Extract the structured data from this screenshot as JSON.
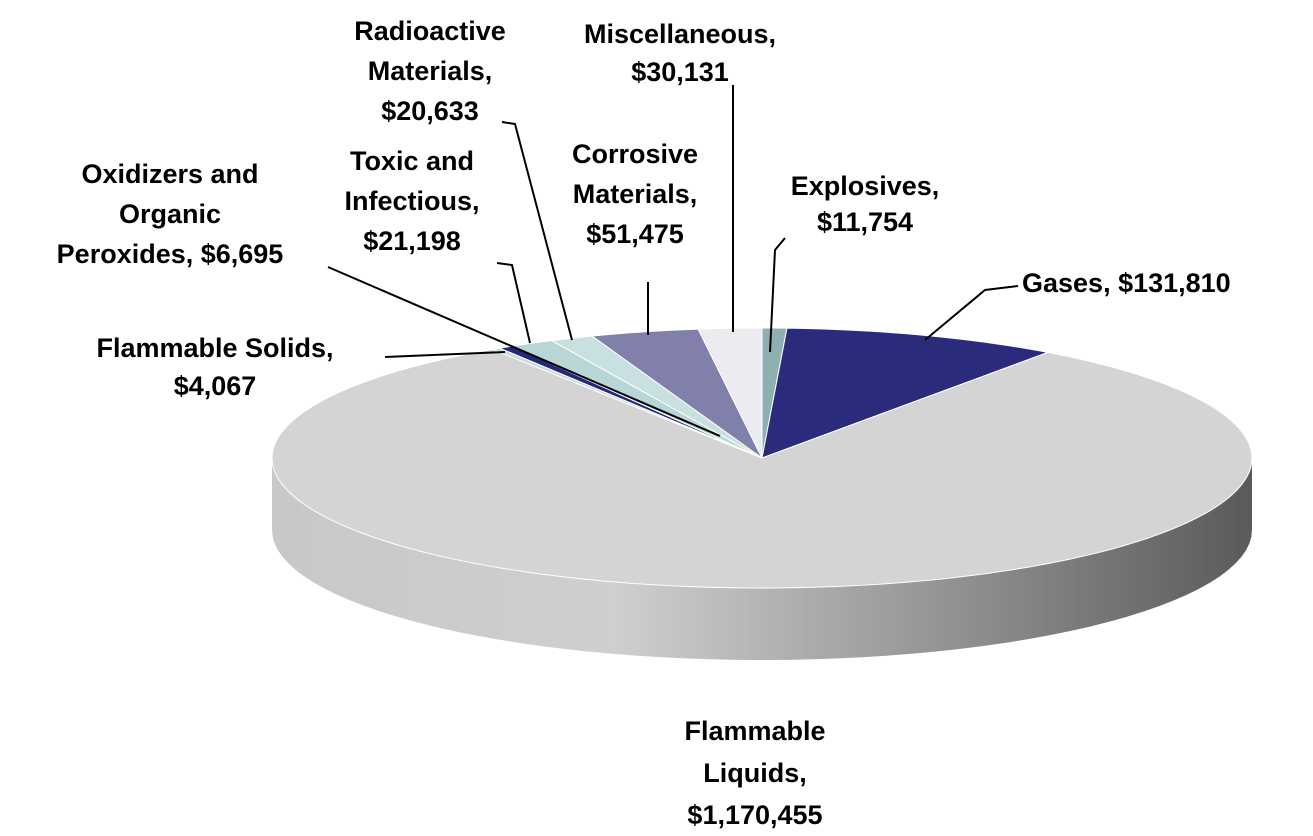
{
  "chart_data": {
    "type": "pie3d",
    "values": [
      11754,
      131810,
      1170455,
      4067,
      6695,
      21198,
      20633,
      51475,
      30131
    ],
    "value_labels": [
      [
        "Explosives,",
        "$11,754"
      ],
      [
        "Gases, $131,810"
      ],
      [
        "Flammable",
        "Liquids,",
        "$1,170,455"
      ],
      [
        "Flammable Solids,",
        "$4,067"
      ],
      [
        "Oxidizers and",
        "Organic",
        "Peroxides, $6,695"
      ],
      [
        "Toxic and",
        "Infectious,",
        "$21,198"
      ],
      [
        "Radioactive",
        "Materials,",
        "$20,633"
      ],
      [
        "Corrosive",
        "Materials,",
        "$51,475"
      ],
      [
        "Miscellaneous,",
        "$30,131"
      ]
    ],
    "colors": [
      "#8fb0b0",
      "#2b2b7c",
      "#d4d4d4",
      "#c4dede",
      "#26267a",
      "#b8d6d6",
      "#c9e0e0",
      "#8080aa",
      "#ececf0"
    ]
  }
}
